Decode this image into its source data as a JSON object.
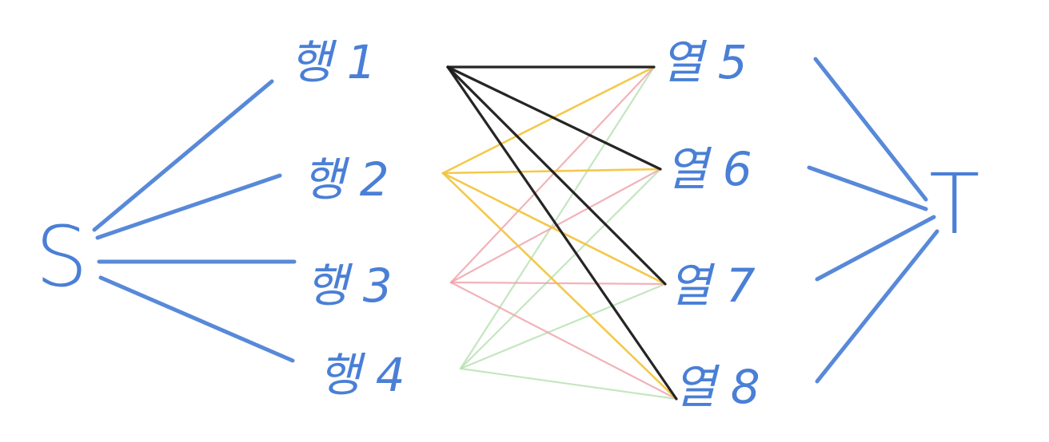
{
  "source": {
    "label": "S"
  },
  "sink": {
    "label": "T"
  },
  "rows": [
    {
      "id": "r1",
      "label": "행 1"
    },
    {
      "id": "r2",
      "label": "행 2"
    },
    {
      "id": "r3",
      "label": "행 3"
    },
    {
      "id": "r4",
      "label": "행 4"
    }
  ],
  "columns": [
    {
      "id": "c5",
      "label": "열 5"
    },
    {
      "id": "c6",
      "label": "열 6"
    },
    {
      "id": "c7",
      "label": "열 7"
    },
    {
      "id": "c8",
      "label": "열 8"
    }
  ],
  "colors": {
    "blue": "#4a7fd6",
    "row1": "#1a1a1a",
    "row2": "#f2c438",
    "row3": "#f0a0a8",
    "row4": "#b6e0b0"
  },
  "row_to_column_edges": [
    {
      "row": "r1",
      "targets": [
        "c5",
        "c6",
        "c7",
        "c8"
      ],
      "color_key": "row1"
    },
    {
      "row": "r2",
      "targets": [
        "c5",
        "c6",
        "c7",
        "c8"
      ],
      "color_key": "row2"
    },
    {
      "row": "r3",
      "targets": [
        "c5",
        "c6",
        "c7",
        "c8"
      ],
      "color_key": "row3"
    },
    {
      "row": "r4",
      "targets": [
        "c5",
        "c6",
        "c7",
        "c8"
      ],
      "color_key": "row4"
    }
  ]
}
